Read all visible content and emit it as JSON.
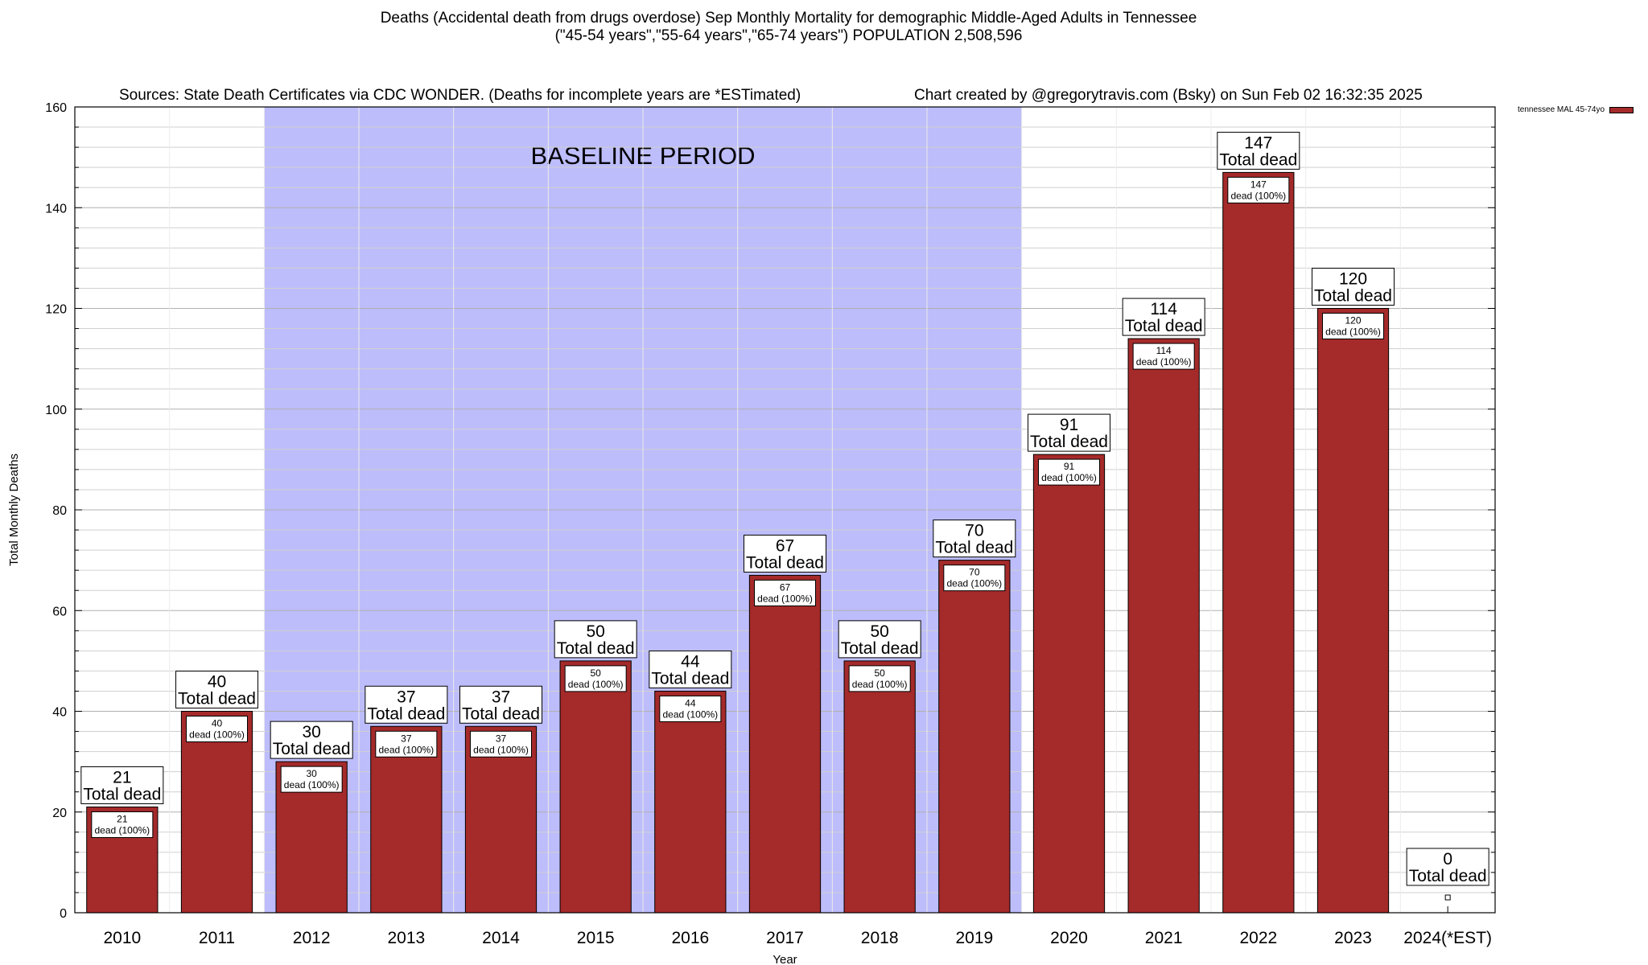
{
  "header": {
    "title_line1": "Deaths (Accidental death from drugs overdose) Sep Monthly Mortality for demographic Middle-Aged Adults in Tennessee",
    "title_line2": "(\"45-54 years\",\"55-64 years\",\"65-74 years\") POPULATION 2,508,596",
    "sources": "Sources: State Death Certificates via CDC WONDER. (Deaths for incomplete years are *ESTimated)",
    "credit": "Chart created by @gregorytravis.com (Bsky) on Sun Feb 02 16:32:35 2025"
  },
  "chart_data": {
    "type": "bar",
    "xlabel": "Year",
    "ylabel": "Total Monthly Deaths",
    "ylim": [
      0,
      160
    ],
    "y_ticks": [
      0,
      20,
      40,
      60,
      80,
      100,
      120,
      140,
      160
    ],
    "categories": [
      "2010",
      "2011",
      "2012",
      "2013",
      "2014",
      "2015",
      "2016",
      "2017",
      "2018",
      "2019",
      "2020",
      "2021",
      "2022",
      "2023",
      "2024(*EST)"
    ],
    "series": [
      {
        "name": "tennessee MAL 45-74yo",
        "values": [
          21,
          40,
          30,
          37,
          37,
          50,
          44,
          67,
          50,
          70,
          91,
          114,
          147,
          120,
          0
        ]
      }
    ],
    "bar_color": "#a52a2a",
    "top_label_suffix": "Total dead",
    "inner_label_suffix": "dead (100%)",
    "shaded_region": {
      "label": "BASELINE PERIOD",
      "from": "2012",
      "to": "2019",
      "color": "#bdbdfb"
    },
    "grid": true,
    "legend_position": "top-right"
  }
}
